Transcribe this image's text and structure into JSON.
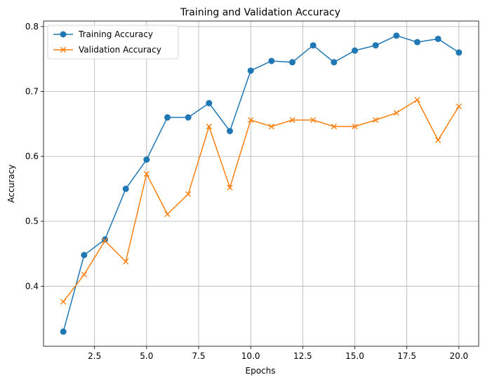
{
  "chart_data": {
    "type": "line",
    "title": "Training and Validation Accuracy",
    "xlabel": "Epochs",
    "ylabel": "Accuracy",
    "xlim": [
      0.05,
      20.95
    ],
    "ylim": [
      0.3075,
      0.8085
    ],
    "grid": true,
    "legend_position": "top-left",
    "x": [
      1,
      2,
      3,
      4,
      5,
      6,
      7,
      8,
      9,
      10,
      11,
      12,
      13,
      14,
      15,
      16,
      17,
      18,
      19,
      20
    ],
    "x_ticks": [
      2.5,
      5.0,
      7.5,
      10.0,
      12.5,
      15.0,
      17.5,
      20.0
    ],
    "x_tick_labels": [
      "2.5",
      "5.0",
      "7.5",
      "10.0",
      "12.5",
      "15.0",
      "17.5",
      "20.0"
    ],
    "y_ticks": [
      0.4,
      0.5,
      0.6,
      0.7,
      0.8
    ],
    "y_tick_labels": [
      "0.4",
      "0.5",
      "0.6",
      "0.7",
      "0.8"
    ],
    "series": [
      {
        "name": "Training Accuracy",
        "color": "#1f77b4",
        "marker": "circle",
        "values": [
          0.33,
          0.448,
          0.472,
          0.55,
          0.595,
          0.66,
          0.66,
          0.682,
          0.639,
          0.732,
          0.747,
          0.745,
          0.771,
          0.745,
          0.763,
          0.771,
          0.786,
          0.776,
          0.781,
          0.76
        ]
      },
      {
        "name": "Validation Accuracy",
        "color": "#ff7f0e",
        "marker": "x",
        "values": [
          0.376,
          0.418,
          0.47,
          0.438,
          0.573,
          0.511,
          0.542,
          0.646,
          0.552,
          0.656,
          0.646,
          0.656,
          0.656,
          0.646,
          0.646,
          0.656,
          0.667,
          0.687,
          0.625,
          0.677
        ]
      }
    ]
  }
}
